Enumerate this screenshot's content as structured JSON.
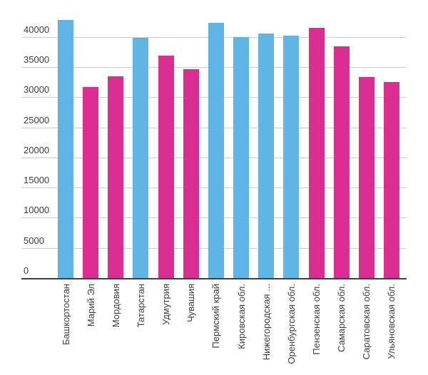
{
  "chart_data": {
    "type": "bar",
    "title": "",
    "xlabel": "",
    "ylabel": "",
    "legend": "none",
    "grid": true,
    "x_label_rotation": -90,
    "y_ticks": [
      0,
      5000,
      10000,
      15000,
      20000,
      25000,
      30000,
      35000,
      40000
    ],
    "ylim": [
      0,
      46200
    ],
    "categories": [
      "Башкортостан",
      "Марий Эл",
      "Мордовия",
      "Татарстан",
      "Удмутрия",
      "Чувашия",
      "Пермский край",
      "Кировская обл.",
      "Нижегородская ...",
      "Оренбургская обл.",
      "Пензенская обл.",
      "Самарская обл.",
      "Саратовская обл.",
      "Ульяновская обл."
    ],
    "values": [
      42800,
      31700,
      33400,
      39800,
      36900,
      34600,
      42300,
      39900,
      40500,
      40200,
      41500,
      38400,
      33300,
      32500
    ],
    "bar_color_keys": [
      "blue",
      "pink",
      "pink",
      "blue",
      "pink",
      "pink",
      "blue",
      "blue",
      "blue",
      "blue",
      "pink",
      "pink",
      "pink",
      "pink"
    ]
  },
  "colors": {
    "blue": "#5FB5E5",
    "pink": "#DB2D92",
    "gridline": "#cccccc",
    "axis": "#3f3f3f",
    "text": "#3d3d3d",
    "background": "#ffffff"
  }
}
